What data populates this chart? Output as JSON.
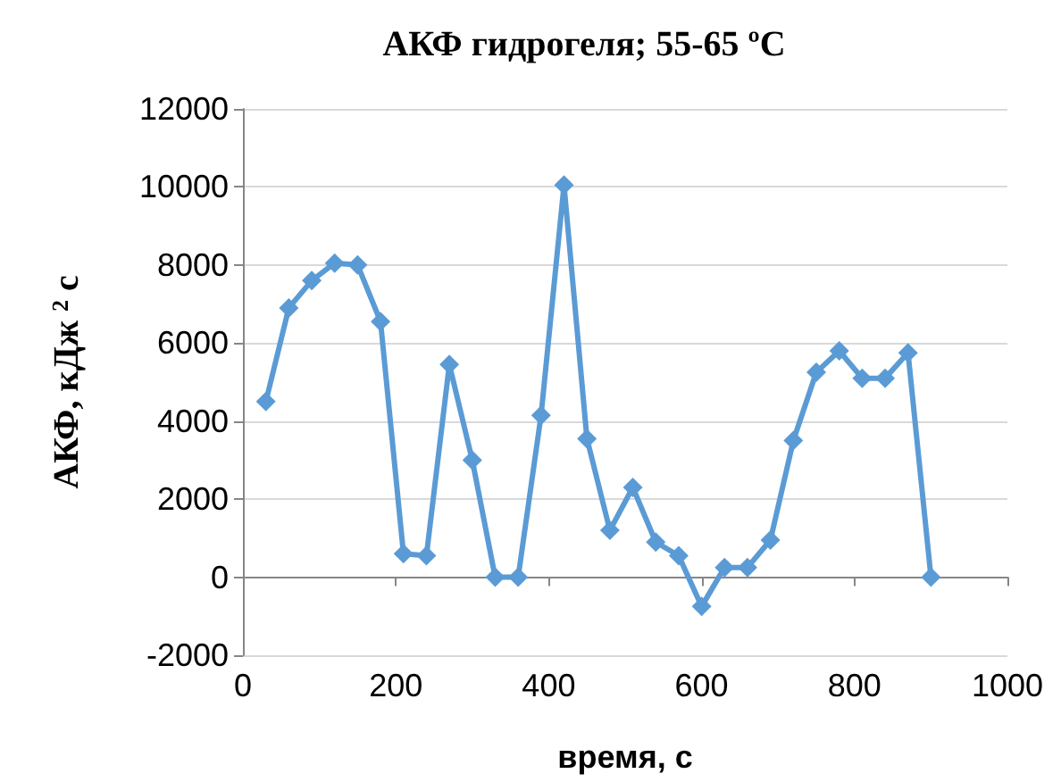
{
  "chart_data": {
    "type": "line",
    "title": "АКФ гидрогеля; 55-65 ºС",
    "xlabel": "время, с",
    "ylabel": "АКФ, кДж $^{2}$ с",
    "x": [
      30,
      60,
      90,
      120,
      150,
      180,
      210,
      240,
      270,
      300,
      330,
      360,
      390,
      420,
      450,
      480,
      510,
      540,
      570,
      600,
      630,
      660,
      690,
      720,
      750,
      780,
      810,
      840,
      870,
      900
    ],
    "series": [
      {
        "color": "#5b9bd5",
        "values": [
          4500,
          6900,
          7600,
          8050,
          8000,
          6550,
          600,
          550,
          5450,
          3000,
          0,
          0,
          4150,
          10050,
          3550,
          1200,
          2300,
          900,
          550,
          -750,
          250,
          250,
          950,
          3500,
          5250,
          5800,
          5100,
          5100,
          5750,
          0
        ]
      }
    ],
    "xlim": [
      0,
      1000
    ],
    "xticks": [
      0,
      200,
      400,
      600,
      800,
      1000
    ],
    "ylim": [
      -2000,
      12000
    ],
    "yticks": [
      -2000,
      0,
      2000,
      4000,
      6000,
      8000,
      10000,
      12000
    ],
    "grid": "y",
    "marker": "diamond",
    "line_style": "solid"
  }
}
